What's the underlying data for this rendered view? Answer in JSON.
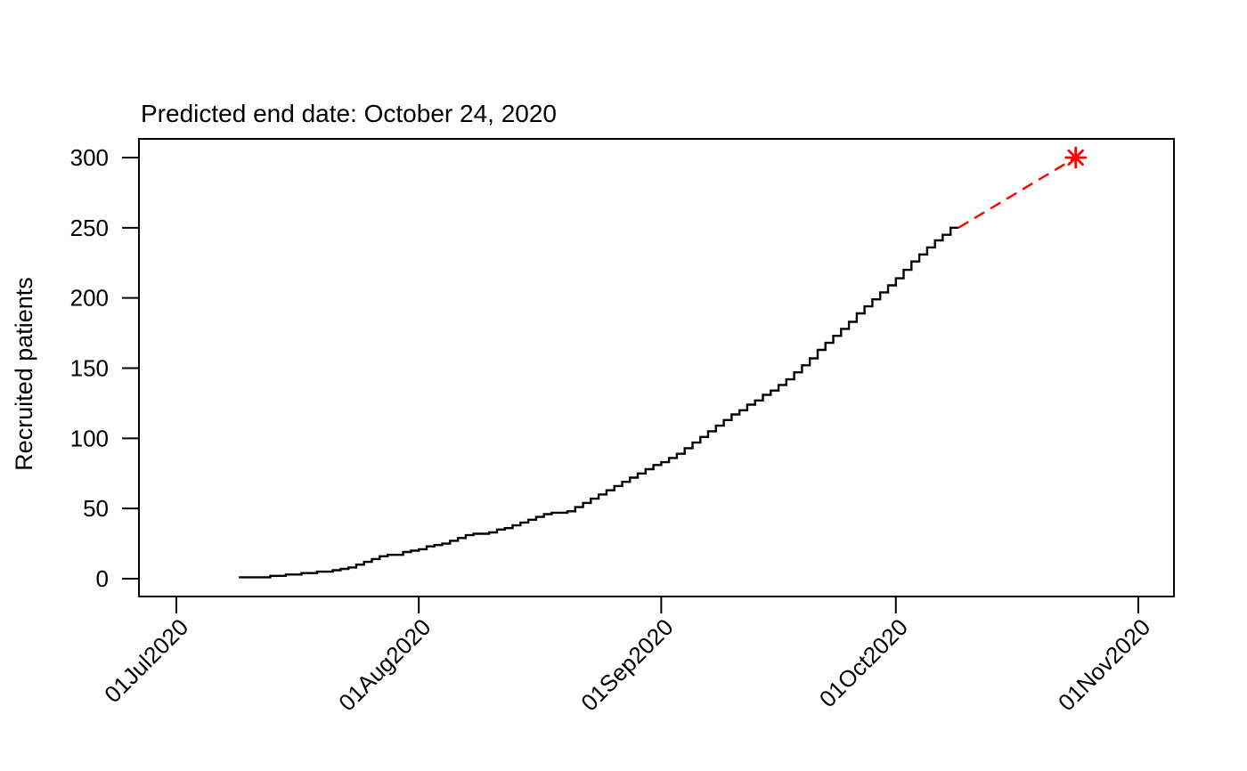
{
  "chart_data": {
    "type": "line",
    "variant": "step",
    "title": "Predicted end date: October 24, 2020",
    "ylabel": "Recruited patients",
    "xlabel": "",
    "grid": false,
    "legend": "none",
    "x_axis": {
      "unit": "date (days since 01Jul2020)",
      "tick_labels": [
        "01Jul2020",
        "01Aug2020",
        "01Sep2020",
        "01Oct2020",
        "01Nov2020"
      ],
      "tick_days": [
        0,
        31,
        62,
        92,
        123
      ],
      "label_rotation_deg": 45
    },
    "y_axis": {
      "tick_labels": [
        "0",
        "50",
        "100",
        "150",
        "200",
        "250",
        "300"
      ],
      "tick_values": [
        0,
        50,
        100,
        150,
        200,
        250,
        300
      ],
      "ylim": [
        0,
        300
      ]
    },
    "series": [
      {
        "name": "observed-recruitment",
        "style": "solid-step",
        "color": "#000000",
        "points_day_value": [
          [
            8,
            1
          ],
          [
            9,
            1
          ],
          [
            10,
            1
          ],
          [
            11,
            1
          ],
          [
            12,
            2
          ],
          [
            13,
            2
          ],
          [
            14,
            3
          ],
          [
            15,
            3
          ],
          [
            16,
            4
          ],
          [
            17,
            4
          ],
          [
            18,
            5
          ],
          [
            19,
            5
          ],
          [
            20,
            6
          ],
          [
            21,
            7
          ],
          [
            22,
            8
          ],
          [
            23,
            10
          ],
          [
            24,
            12
          ],
          [
            25,
            14
          ],
          [
            26,
            16
          ],
          [
            27,
            17
          ],
          [
            28,
            17
          ],
          [
            29,
            19
          ],
          [
            30,
            20
          ],
          [
            31,
            21
          ],
          [
            32,
            23
          ],
          [
            33,
            24
          ],
          [
            34,
            25
          ],
          [
            35,
            27
          ],
          [
            36,
            29
          ],
          [
            37,
            31
          ],
          [
            38,
            32
          ],
          [
            39,
            32
          ],
          [
            40,
            33
          ],
          [
            41,
            35
          ],
          [
            42,
            36
          ],
          [
            43,
            38
          ],
          [
            44,
            40
          ],
          [
            45,
            42
          ],
          [
            46,
            44
          ],
          [
            47,
            46
          ],
          [
            48,
            47
          ],
          [
            49,
            47
          ],
          [
            50,
            48
          ],
          [
            51,
            51
          ],
          [
            52,
            54
          ],
          [
            53,
            57
          ],
          [
            54,
            60
          ],
          [
            55,
            63
          ],
          [
            56,
            66
          ],
          [
            57,
            69
          ],
          [
            58,
            72
          ],
          [
            59,
            75
          ],
          [
            60,
            78
          ],
          [
            61,
            81
          ],
          [
            62,
            83
          ],
          [
            63,
            86
          ],
          [
            64,
            89
          ],
          [
            65,
            93
          ],
          [
            66,
            97
          ],
          [
            67,
            101
          ],
          [
            68,
            105
          ],
          [
            69,
            109
          ],
          [
            70,
            113
          ],
          [
            71,
            117
          ],
          [
            72,
            120
          ],
          [
            73,
            124
          ],
          [
            74,
            127
          ],
          [
            75,
            131
          ],
          [
            76,
            134
          ],
          [
            77,
            138
          ],
          [
            78,
            142
          ],
          [
            79,
            147
          ],
          [
            80,
            152
          ],
          [
            81,
            157
          ],
          [
            82,
            163
          ],
          [
            83,
            168
          ],
          [
            84,
            173
          ],
          [
            85,
            178
          ],
          [
            86,
            183
          ],
          [
            87,
            189
          ],
          [
            88,
            194
          ],
          [
            89,
            199
          ],
          [
            90,
            204
          ],
          [
            91,
            209
          ],
          [
            92,
            214
          ],
          [
            93,
            220
          ],
          [
            94,
            226
          ],
          [
            95,
            231
          ],
          [
            96,
            236
          ],
          [
            97,
            241
          ],
          [
            98,
            245
          ],
          [
            99,
            250
          ],
          [
            100,
            250
          ]
        ]
      },
      {
        "name": "predicted-recruitment",
        "style": "dashed",
        "color": "#FF0000",
        "points_day_value": [
          [
            100,
            250
          ],
          [
            115,
            300
          ]
        ],
        "end_marker": "asterisk"
      }
    ],
    "annotation": {
      "predicted_end_date_label": "October 24, 2020",
      "predicted_end_value": 300
    }
  },
  "colors": {
    "background": "#FFFFFF",
    "axis": "#000000",
    "observed_line": "#000000",
    "prediction_line": "#FF0000"
  }
}
